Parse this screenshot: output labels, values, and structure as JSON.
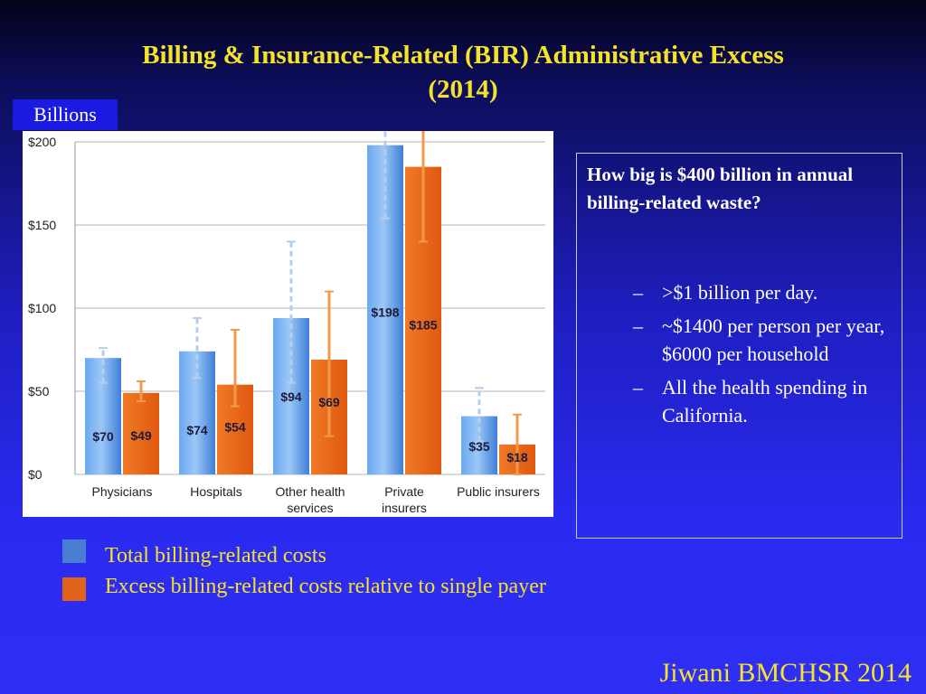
{
  "slide": {
    "title_line1": "Billing & Insurance-Related (BIR) Administrative Excess",
    "title_line2": "(2014)",
    "units_label": "Billions",
    "credit": "Jiwani BMCHSR 2014"
  },
  "info_box": {
    "question": "How big is $400 billion in annual billing-related waste?",
    "items": [
      ">$1 billion per day.",
      "~$1400 per person per year, $6000 per household",
      "All the health spending in California."
    ],
    "bullet": "–"
  },
  "legend": [
    {
      "label": "Total billing-related costs",
      "color": "#4a7fd0"
    },
    {
      "label": "Excess billing-related costs relative to single payer",
      "color": "#e2631a"
    }
  ],
  "chart_data": {
    "type": "bar",
    "categories": [
      [
        "Physicians"
      ],
      [
        "Hospitals"
      ],
      [
        "Other health",
        "services"
      ],
      [
        "Private",
        "insurers"
      ],
      [
        "Public insurers"
      ]
    ],
    "series": [
      {
        "name": "Total billing-related costs",
        "color": "#4a8ee0",
        "values": [
          70,
          74,
          94,
          198,
          35
        ],
        "labels": [
          "$70",
          "$74",
          "$94",
          "$198",
          "$35"
        ],
        "error_low": [
          55,
          58,
          55,
          154,
          20
        ],
        "error_high": [
          76,
          94,
          140,
          215,
          52
        ]
      },
      {
        "name": "Excess billing-related costs relative to single payer",
        "color": "#e8661c",
        "values": [
          49,
          54,
          69,
          185,
          18
        ],
        "labels": [
          "$49",
          "$54",
          "$69",
          "$185",
          "$18"
        ],
        "error_low": [
          44,
          41,
          23,
          140,
          0
        ],
        "error_high": [
          56,
          87,
          110,
          215,
          36
        ]
      }
    ],
    "ylim": [
      0,
      200
    ],
    "yticks": [
      0,
      50,
      100,
      150,
      200
    ],
    "ytick_labels": [
      "$0",
      "$50",
      "$100",
      "$150",
      "$200"
    ],
    "grid": true,
    "error_bars": true
  }
}
